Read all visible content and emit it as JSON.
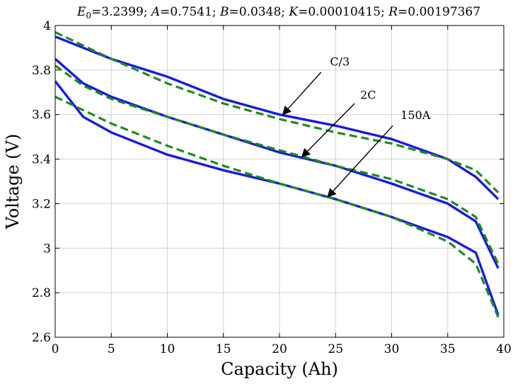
{
  "chart_data": {
    "type": "line",
    "title": "E0=3.2399; A=0.7541; B=0.0348; K=0.00010415; R=0.00197367",
    "title_parts": [
      {
        "sym": "E",
        "sub": "0",
        "val": "=3.2399; "
      },
      {
        "sym": "A",
        "sub": "",
        "val": "=0.7541; "
      },
      {
        "sym": "B",
        "sub": "",
        "val": "=0.0348; "
      },
      {
        "sym": "K",
        "sub": "",
        "val": "=0.00010415; "
      },
      {
        "sym": "R",
        "sub": "",
        "val": "=0.00197367"
      }
    ],
    "xlabel": "Capacity (Ah)",
    "ylabel": "Voltage (V)",
    "xlim": [
      0,
      40
    ],
    "ylim": [
      2.6,
      4.0
    ],
    "xticks": [
      0,
      5,
      10,
      15,
      20,
      25,
      30,
      35,
      40
    ],
    "yticks": [
      2.6,
      2.8,
      3.0,
      3.2,
      3.4,
      3.6,
      3.8,
      4.0
    ],
    "xtick_labels": [
      "0",
      "5",
      "10",
      "15",
      "20",
      "25",
      "30",
      "35",
      "40"
    ],
    "ytick_labels": [
      "2.6",
      "2.8",
      "3",
      "3.2",
      "3.4",
      "3.6",
      "3.8",
      "4"
    ],
    "grid": true,
    "colors": {
      "measured": "#1a1adf",
      "model": "#1e8a1e"
    },
    "series": [
      {
        "style": "solid",
        "x": [
          0,
          2.5,
          5,
          10,
          15,
          20,
          25,
          30,
          35,
          37.5,
          39.5
        ],
        "y": [
          3.95,
          3.9,
          3.85,
          3.77,
          3.67,
          3.6,
          3.55,
          3.49,
          3.4,
          3.32,
          3.22
        ]
      },
      {
        "style": "dashed",
        "x": [
          0,
          2.5,
          5,
          10,
          15,
          20,
          25,
          30,
          35,
          37.5,
          39.5
        ],
        "y": [
          3.97,
          3.91,
          3.85,
          3.74,
          3.65,
          3.58,
          3.52,
          3.47,
          3.4,
          3.35,
          3.25
        ]
      },
      {
        "style": "solid",
        "x": [
          0,
          2.5,
          5,
          10,
          15,
          20,
          25,
          30,
          35,
          37.5,
          39.5
        ],
        "y": [
          3.85,
          3.74,
          3.68,
          3.59,
          3.51,
          3.43,
          3.37,
          3.29,
          3.2,
          3.12,
          2.91
        ]
      },
      {
        "style": "dashed",
        "x": [
          0,
          2.5,
          5,
          10,
          15,
          20,
          25,
          30,
          35,
          37.5,
          39.5
        ],
        "y": [
          3.82,
          3.73,
          3.67,
          3.59,
          3.51,
          3.44,
          3.37,
          3.31,
          3.22,
          3.14,
          2.93
        ]
      },
      {
        "style": "solid",
        "x": [
          0,
          2.5,
          5,
          10,
          15,
          20,
          25,
          30,
          35,
          37.5,
          39.5
        ],
        "y": [
          3.75,
          3.59,
          3.52,
          3.42,
          3.35,
          3.29,
          3.22,
          3.14,
          3.05,
          2.98,
          2.7
        ]
      },
      {
        "style": "dashed",
        "x": [
          0,
          2.5,
          5,
          10,
          15,
          20,
          25,
          30,
          35,
          37.5,
          39.5
        ],
        "y": [
          3.68,
          3.62,
          3.56,
          3.46,
          3.37,
          3.29,
          3.22,
          3.14,
          3.03,
          2.93,
          2.69
        ]
      }
    ],
    "annotations": [
      {
        "text": "C/3",
        "text_at": [
          24.5,
          3.82
        ],
        "arrow_from": [
          23.7,
          3.79
        ],
        "arrow_to": [
          20.3,
          3.6
        ]
      },
      {
        "text": "2C",
        "text_at": [
          27.2,
          3.67
        ],
        "arrow_from": [
          26.7,
          3.65
        ],
        "arrow_to": [
          22.0,
          3.41
        ]
      },
      {
        "text": "150A",
        "text_at": [
          30.8,
          3.58
        ],
        "arrow_from": [
          30.1,
          3.55
        ],
        "arrow_to": [
          24.3,
          3.23
        ]
      }
    ]
  }
}
